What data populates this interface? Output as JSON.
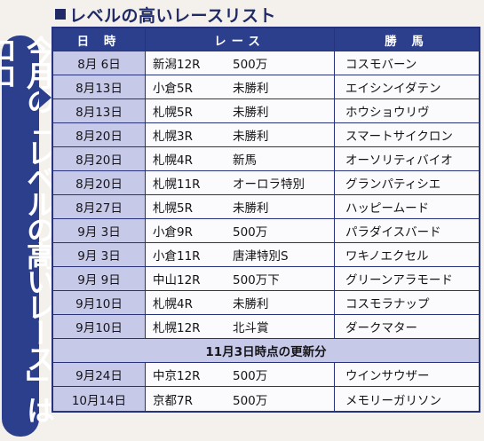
{
  "title": "レベルの高いレースリスト",
  "side_text": "今月の「レベルの高いレース」はココ",
  "headers": [
    "日 時",
    "レース",
    "勝 馬"
  ],
  "rows": [
    {
      "date": "8月 6日",
      "course": "新潟12R",
      "race": "500万",
      "winner": "コスモバーン"
    },
    {
      "date": "8月13日",
      "course": "小倉5R",
      "race": "未勝利",
      "winner": "エイシンイダテン"
    },
    {
      "date": "8月13日",
      "course": "札幌5R",
      "race": "未勝利",
      "winner": "ホウショウリヴ"
    },
    {
      "date": "8月20日",
      "course": "札幌3R",
      "race": "未勝利",
      "winner": "スマートサイクロン"
    },
    {
      "date": "8月20日",
      "course": "札幌4R",
      "race": "新馬",
      "winner": "オーソリティバイオ"
    },
    {
      "date": "8月20日",
      "course": "札幌11R",
      "race": "オーロラ特別",
      "winner": "グランパティシエ"
    },
    {
      "date": "8月27日",
      "course": "札幌5R",
      "race": "未勝利",
      "winner": "ハッピームード"
    },
    {
      "date": "9月 3日",
      "course": "小倉9R",
      "race": "500万",
      "winner": "パラダイスバード"
    },
    {
      "date": "9月 3日",
      "course": "小倉11R",
      "race": "唐津特別S",
      "winner": "ワキノエクセル"
    },
    {
      "date": "9月 9日",
      "course": "中山12R",
      "race": "500万下",
      "winner": "グリーンアラモード"
    },
    {
      "date": "9月10日",
      "course": "札幌4R",
      "race": "未勝利",
      "winner": "コスモラナップ"
    },
    {
      "date": "9月10日",
      "course": "札幌12R",
      "race": "北斗賞",
      "winner": "ダークマター"
    }
  ],
  "update_label": "11月3日時点の更新分",
  "update_rows": [
    {
      "date": "9月24日",
      "course": "中京12R",
      "race": "500万",
      "winner": "ウインサウザー"
    },
    {
      "date": "10月14日",
      "course": "京都7R",
      "race": "500万",
      "winner": "メモリーガリソン"
    }
  ]
}
